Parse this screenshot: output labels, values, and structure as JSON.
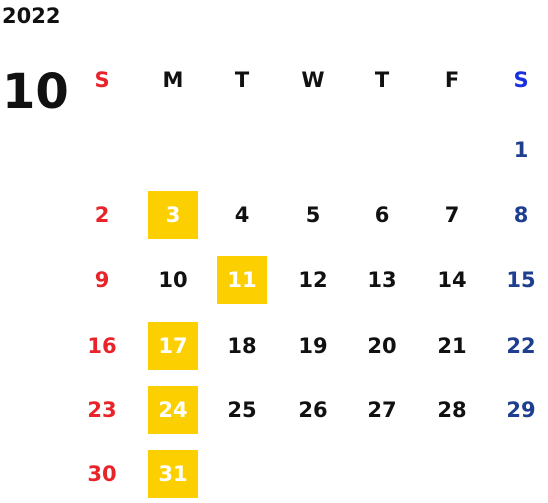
{
  "year": "2022",
  "month": "10",
  "weekdays": [
    "S",
    "M",
    "T",
    "W",
    "T",
    "F",
    "S"
  ],
  "weeks": [
    [
      null,
      null,
      null,
      null,
      null,
      null,
      {
        "label": "1"
      }
    ],
    [
      {
        "label": "2"
      },
      {
        "label": "3",
        "highlighted": true
      },
      {
        "label": "4"
      },
      {
        "label": "5"
      },
      {
        "label": "6"
      },
      {
        "label": "7"
      },
      {
        "label": "8"
      }
    ],
    [
      {
        "label": "9"
      },
      {
        "label": "10"
      },
      {
        "label": "11",
        "highlighted": true
      },
      {
        "label": "12"
      },
      {
        "label": "13"
      },
      {
        "label": "14"
      },
      {
        "label": "15"
      }
    ],
    [
      {
        "label": "16"
      },
      {
        "label": "17",
        "highlighted": true
      },
      {
        "label": "18"
      },
      {
        "label": "19"
      },
      {
        "label": "20"
      },
      {
        "label": "21"
      },
      {
        "label": "22"
      }
    ],
    [
      {
        "label": "23"
      },
      {
        "label": "24",
        "highlighted": true
      },
      {
        "label": "25"
      },
      {
        "label": "26"
      },
      {
        "label": "27"
      },
      {
        "label": "28"
      },
      {
        "label": "29"
      }
    ],
    [
      {
        "label": "30"
      },
      {
        "label": "31",
        "highlighted": true
      },
      null,
      null,
      null,
      null,
      null
    ]
  ]
}
